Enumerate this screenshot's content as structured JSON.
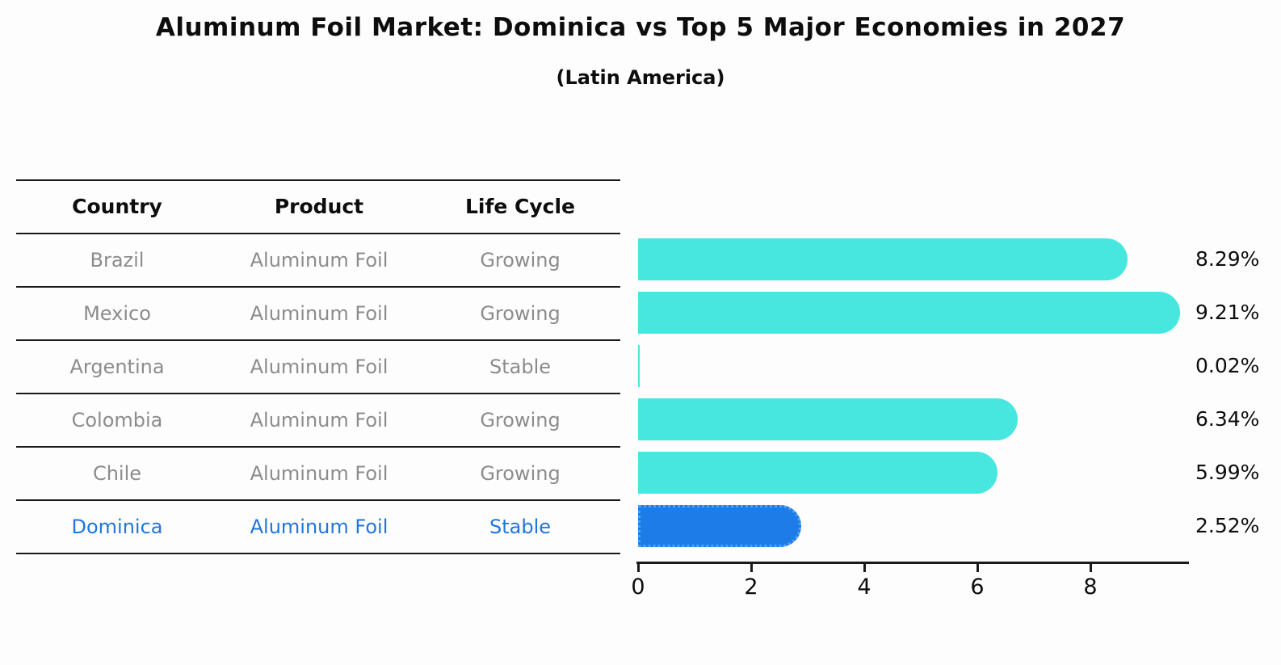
{
  "title": "Aluminum Foil Market: Dominica vs Top 5 Major Economies in 2027",
  "subtitle": "(Latin America)",
  "table": {
    "headers": {
      "country": "Country",
      "product": "Product",
      "life_cycle": "Life Cycle"
    },
    "rows": [
      {
        "country": "Brazil",
        "product": "Aluminum Foil",
        "life_cycle": "Growing",
        "highlight": false
      },
      {
        "country": "Mexico",
        "product": "Aluminum Foil",
        "life_cycle": "Growing",
        "highlight": false
      },
      {
        "country": "Argentina",
        "product": "Aluminum Foil",
        "life_cycle": "Stable",
        "highlight": false
      },
      {
        "country": "Colombia",
        "product": "Aluminum Foil",
        "life_cycle": "Growing",
        "highlight": false
      },
      {
        "country": "Chile",
        "product": "Aluminum Foil",
        "life_cycle": "Growing",
        "highlight": false
      },
      {
        "country": "Dominica",
        "product": "Aluminum Foil",
        "life_cycle": "Stable",
        "highlight": true
      }
    ]
  },
  "chart_data": {
    "type": "bar",
    "orientation": "horizontal",
    "title": "Aluminum Foil Market: Dominica vs Top 5 Major Economies in 2027",
    "subtitle": "(Latin America)",
    "categories": [
      "Brazil",
      "Mexico",
      "Argentina",
      "Colombia",
      "Chile",
      "Dominica"
    ],
    "values": [
      8.29,
      9.21,
      0.02,
      6.34,
      5.99,
      2.52
    ],
    "value_labels": [
      "8.29%",
      "9.21%",
      "0.02%",
      "6.34%",
      "5.99%",
      "2.52%"
    ],
    "x_ticks": [
      0,
      2,
      4,
      6,
      8
    ],
    "x_tick_labels": [
      "0",
      "2",
      "4",
      "6",
      "8"
    ],
    "xlim": [
      0,
      9.7
    ],
    "xlabel": "",
    "ylabel": "",
    "grid": false,
    "legend": false,
    "bar_color": "#47e7e0",
    "highlight_color": "#1e7ce8",
    "highlight_border_color": "#56a0f0",
    "highlight_index": 5
  }
}
